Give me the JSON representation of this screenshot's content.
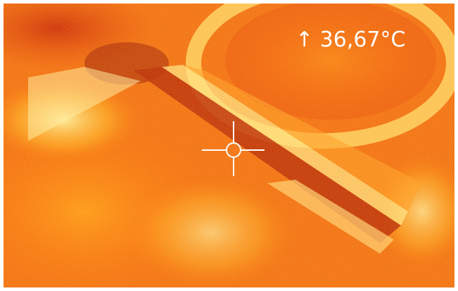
{
  "overlay": {
    "readout": "↑ 36,67°C"
  }
}
